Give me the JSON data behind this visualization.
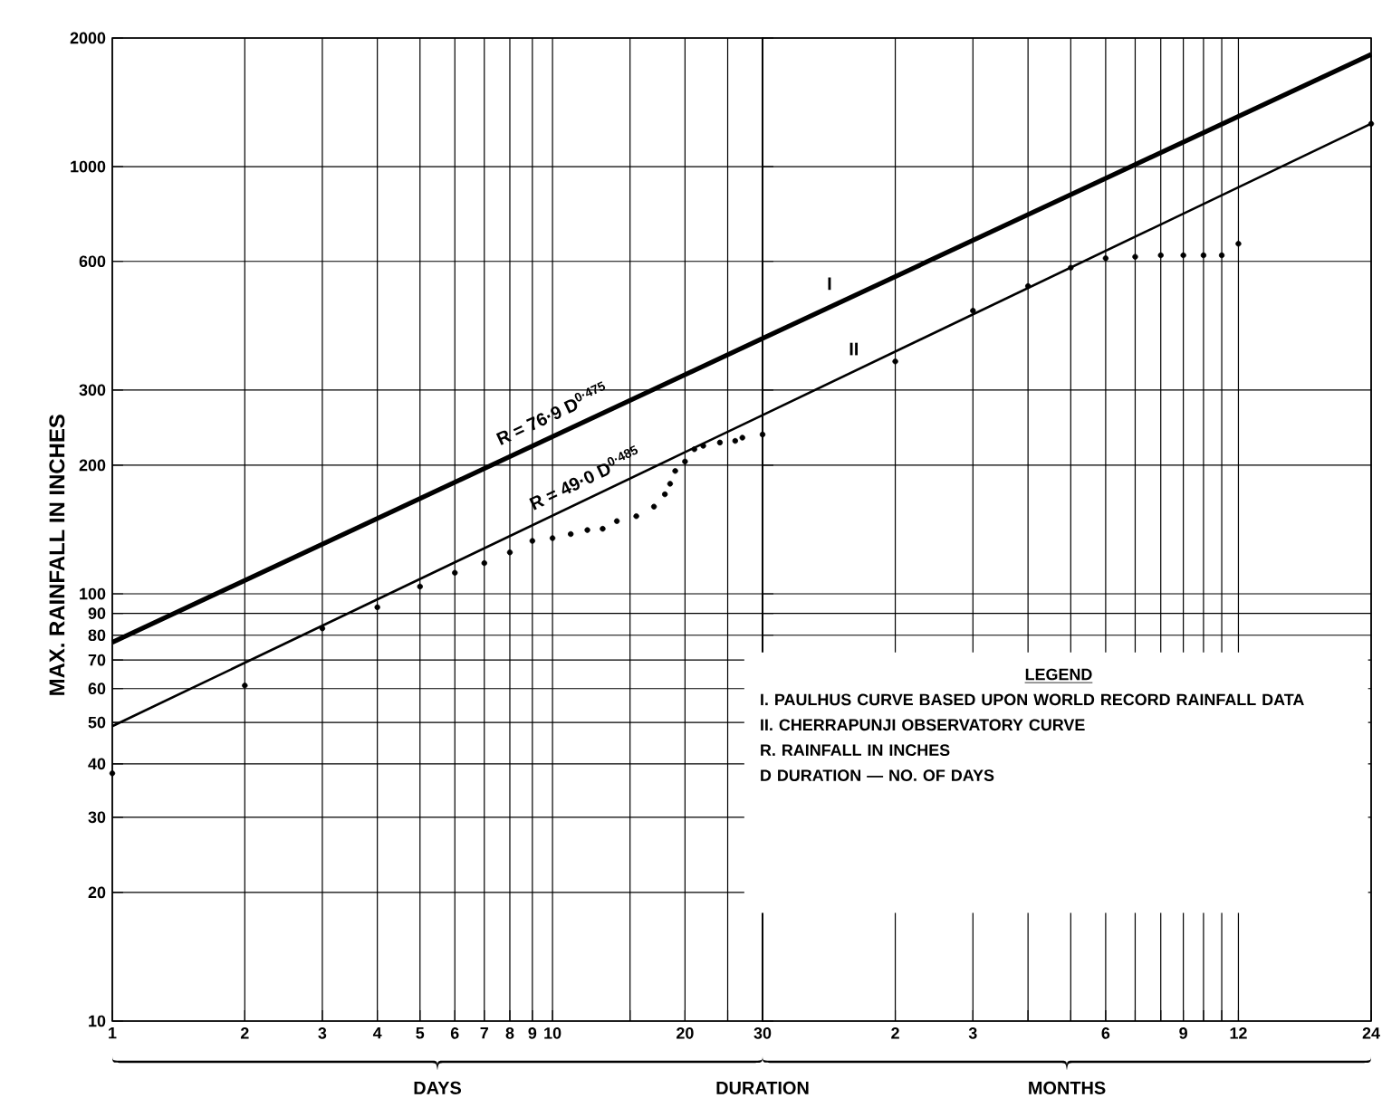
{
  "chart_data": [
    {
      "type": "line",
      "xlabel": "DURATION",
      "ylabel": "MAX. RAINFALL IN INCHES",
      "xlim": [
        1,
        30
      ],
      "ylim": [
        10,
        2000
      ],
      "log": "xy",
      "grid": true,
      "xticks": [
        1,
        2,
        3,
        4,
        5,
        6,
        7,
        8,
        9,
        10,
        {
          "value": 15,
          "label": null
        },
        20,
        {
          "value": 25,
          "label": null
        },
        30
      ],
      "yticks": [
        10,
        20,
        30,
        40,
        50,
        60,
        70,
        80,
        90,
        100,
        200,
        300,
        600,
        1000,
        2000
      ],
      "series": [
        {
          "color": "#000000",
          "line_style": "solid",
          "marker": "none",
          "x": [
            1,
            30
          ],
          "values": [
            77,
            396
          ]
        },
        {
          "color": "#000000",
          "line_style": "solid",
          "marker": "none",
          "x": [
            1,
            30
          ],
          "values": [
            49,
            262
          ]
        },
        {
          "type": "scatter",
          "color": "#000000",
          "marker": "circle",
          "x": [
            1,
            2,
            3,
            4,
            5,
            6,
            7,
            8,
            9,
            10,
            11,
            12,
            13,
            14,
            15.5,
            17,
            18,
            18.5,
            19,
            20,
            21,
            22,
            24,
            26,
            27,
            30
          ],
          "values": [
            38,
            61,
            83,
            93,
            104,
            112,
            118,
            125,
            133,
            135,
            138,
            141,
            142,
            148,
            152,
            160,
            171,
            181,
            194,
            204,
            218,
            222,
            226,
            228,
            232,
            236
          ]
        }
      ],
      "annotations": [
        "R = 76·9 D$^{0·475}$",
        "R = 49·0 D$^{0·485}$",
        "DAYS"
      ]
    },
    {
      "type": "line",
      "xlim": [
        1,
        24
      ],
      "ylim": [
        10,
        2000
      ],
      "log": "xy",
      "grid": true,
      "tick_labels": "x",
      "xticks": [
        2,
        3,
        {
          "value": 4,
          "label": null
        },
        {
          "value": 5,
          "label": null
        },
        6,
        {
          "value": 7,
          "label": null
        },
        {
          "value": 8,
          "label": null
        },
        9,
        {
          "value": 10,
          "label": null
        },
        {
          "value": 11,
          "label": null
        },
        12,
        24
      ],
      "yticks": [
        10,
        20,
        30,
        40,
        50,
        60,
        70,
        80,
        90,
        100,
        200,
        300,
        600,
        1000,
        2000
      ],
      "series": [
        {
          "name": "I",
          "color": "#000000",
          "line_style": "solid",
          "marker": "none",
          "x": [
            1,
            24
          ],
          "values": [
            396,
            1830
          ]
        },
        {
          "name": "II",
          "color": "#000000",
          "line_style": "solid",
          "marker": "none",
          "x": [
            1,
            24
          ],
          "values": [
            262,
            1260
          ]
        },
        {
          "type": "scatter",
          "color": "#000000",
          "marker": "circle",
          "x": [
            2,
            3,
            4,
            5,
            6,
            7,
            8,
            9,
            10,
            11,
            12,
            24
          ],
          "values": [
            350,
            460,
            525,
            580,
            610,
            615,
            620,
            620,
            620,
            620,
            660,
            1260
          ]
        }
      ],
      "annotations": [
        "LEGEND",
        "I. PAULHUS CURVE BASED UPON WORLD RECORD RAINFALL DATA",
        "II. CHERRAPUNJI OBSERVATORY CURVE",
        "R. RAINFALL IN INCHES",
        "D DURATION — NO. OF DAYS",
        "MONTHS"
      ]
    }
  ]
}
